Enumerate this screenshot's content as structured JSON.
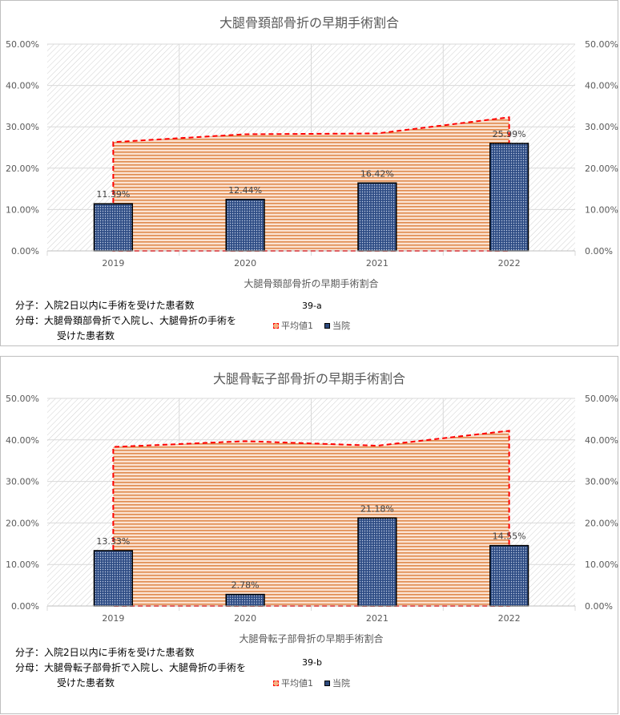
{
  "chart_data": [
    {
      "type": "bar",
      "title": "大腿骨頚部骨折の早期手術割合",
      "categories": [
        "2019",
        "2020",
        "2021",
        "2022"
      ],
      "series": [
        {
          "name": "平均値1",
          "kind": "area",
          "values": [
            26.3,
            28.2,
            28.4,
            32.3
          ]
        },
        {
          "name": "当院",
          "kind": "bar",
          "values": [
            11.39,
            12.44,
            16.42,
            25.99
          ],
          "labels": [
            "11.39%",
            "12.44%",
            "16.42%",
            "25.99%"
          ]
        }
      ],
      "ylim": [
        0,
        50
      ],
      "yticks": [
        "0.00%",
        "10.00%",
        "20.00%",
        "30.00%",
        "40.00%",
        "50.00%"
      ],
      "xlabel": "大腿骨頚部骨折の早期手術割合",
      "figure_code": "39-a",
      "numerator": "分子：入院2日以内に手術を受けた患者数",
      "denominator_1": "分母：大腿骨頚部骨折で入院し、大腿骨折の手術を",
      "denominator_2": "受けた患者数",
      "legend": [
        "平均値1",
        "当院"
      ],
      "legend_position": "bottom"
    },
    {
      "type": "bar",
      "title": "大腿骨転子部骨折の早期手術割合",
      "categories": [
        "2019",
        "2020",
        "2021",
        "2022"
      ],
      "series": [
        {
          "name": "平均値1",
          "kind": "area",
          "values": [
            38.3,
            39.7,
            38.6,
            42.2
          ]
        },
        {
          "name": "当院",
          "kind": "bar",
          "values": [
            13.33,
            2.78,
            21.18,
            14.55
          ],
          "labels": [
            "13.33%",
            "2.78%",
            "21.18%",
            "14.55%"
          ]
        }
      ],
      "ylim": [
        0,
        50
      ],
      "yticks": [
        "0.00%",
        "10.00%",
        "20.00%",
        "30.00%",
        "40.00%",
        "50.00%"
      ],
      "xlabel": "大腿骨転子部骨折の早期手術割合",
      "figure_code": "39-b",
      "numerator": "分子：入院2日以内に手術を受けた患者数",
      "denominator_1": "分母：大腿骨転子部骨折で入院し、大腿骨折の手術を",
      "denominator_2": "受けた患者数",
      "legend": [
        "平均値1",
        "当院"
      ],
      "legend_position": "bottom"
    }
  ]
}
